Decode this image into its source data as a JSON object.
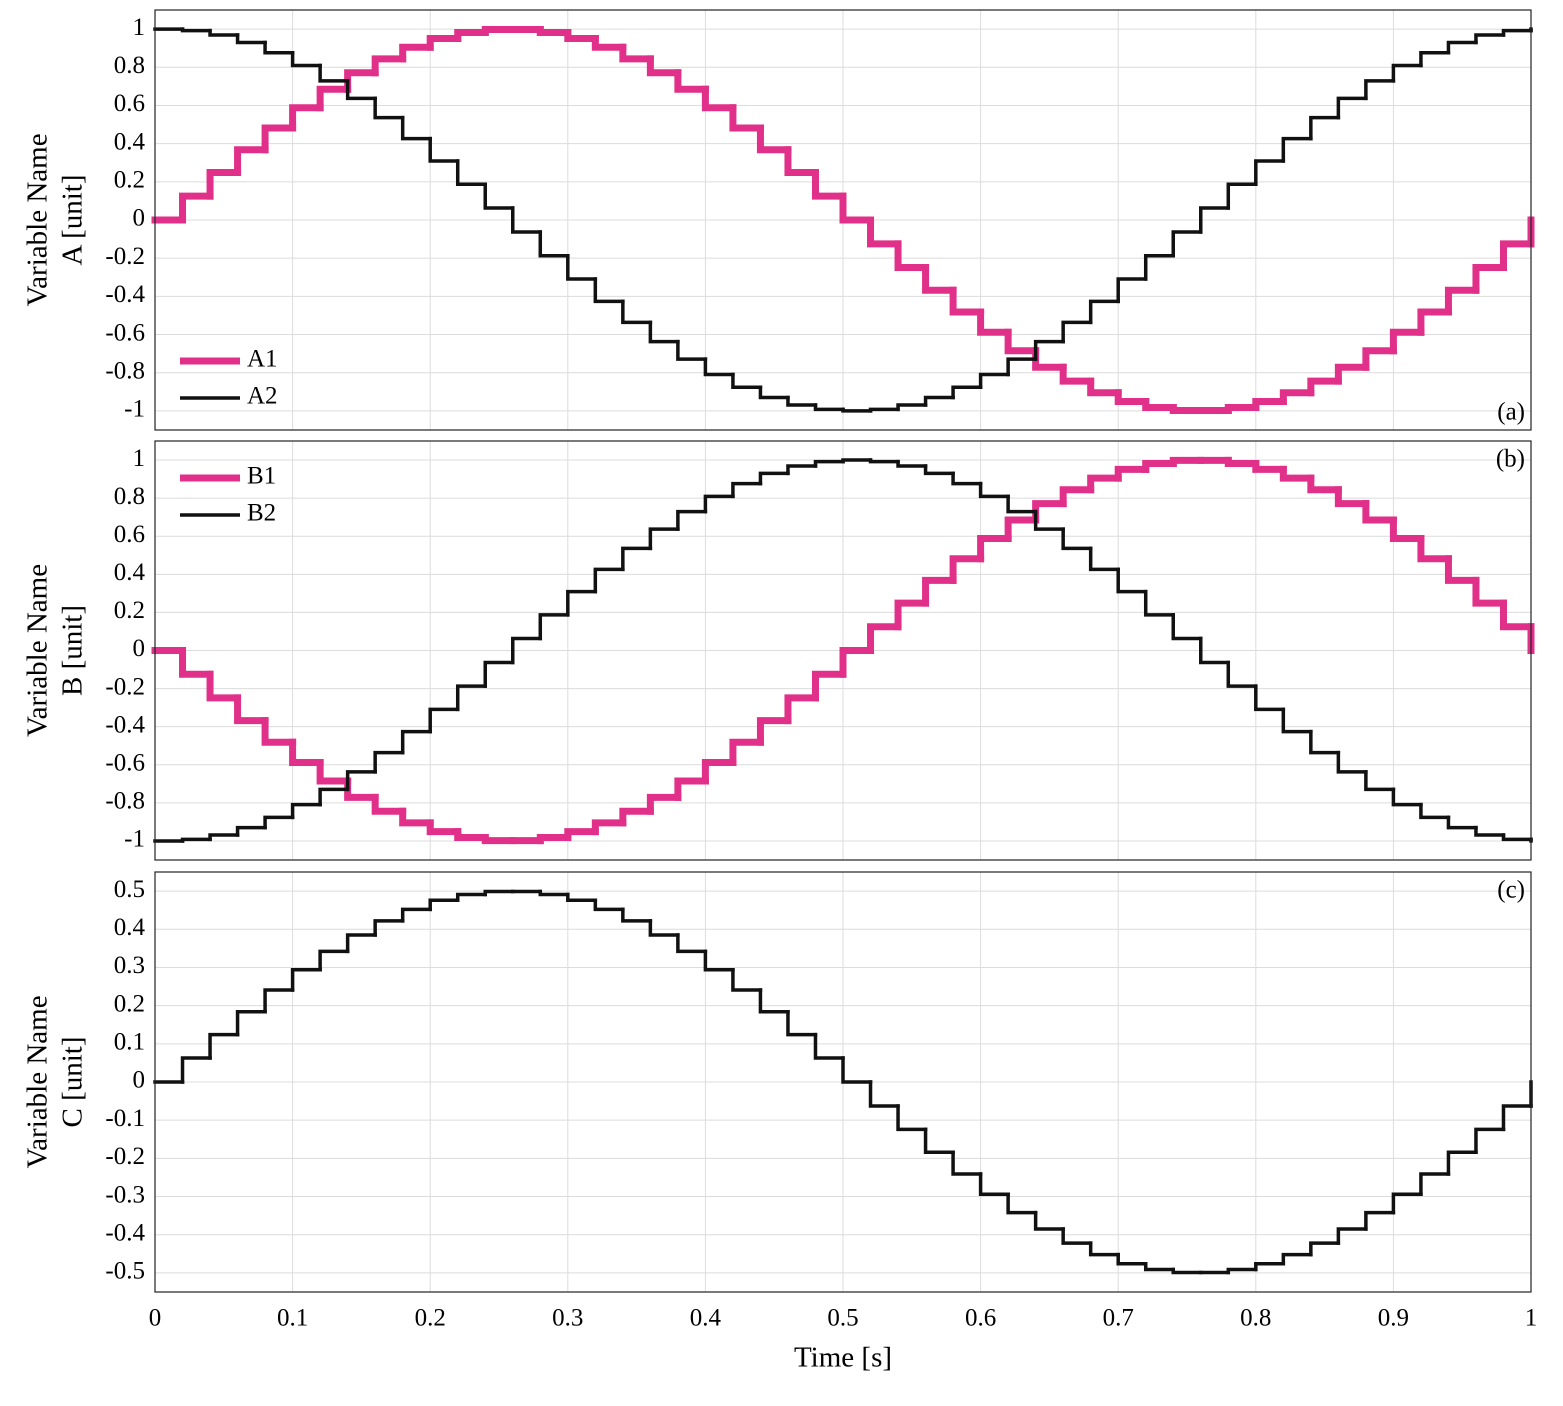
{
  "chart_data": [
    {
      "type": "stairs",
      "ylabel": [
        "Variable Name",
        "A [unit]"
      ],
      "annotation": "(a)",
      "annotation_position": "lower right",
      "legend": "lower left",
      "grid": true,
      "xlim": [
        0,
        1
      ],
      "xticks": [
        0,
        0.1,
        0.2,
        0.3,
        0.4,
        0.5,
        0.6,
        0.7,
        0.8,
        0.9,
        1
      ],
      "ylim": [
        -1.1,
        1.1
      ],
      "yticks": [
        -1,
        -0.8,
        -0.6,
        -0.4,
        -0.2,
        0,
        0.2,
        0.4,
        0.6,
        0.8,
        1
      ],
      "x": [
        0,
        0.02,
        0.04,
        0.06,
        0.08,
        0.1,
        0.12,
        0.14,
        0.16,
        0.18,
        0.2,
        0.22,
        0.24,
        0.26,
        0.28,
        0.3,
        0.32,
        0.34,
        0.36,
        0.38,
        0.4,
        0.42,
        0.44,
        0.46,
        0.48,
        0.5,
        0.52,
        0.54,
        0.56,
        0.58,
        0.6,
        0.62,
        0.64,
        0.66,
        0.68,
        0.7,
        0.72,
        0.74,
        0.76,
        0.78,
        0.8,
        0.82,
        0.84,
        0.86,
        0.88,
        0.9,
        0.92,
        0.94,
        0.96,
        0.98,
        1
      ],
      "series": [
        {
          "name": "A1",
          "color": "#e0308a",
          "values": [
            0,
            0.125,
            0.249,
            0.368,
            0.482,
            0.588,
            0.685,
            0.771,
            0.844,
            0.905,
            0.951,
            0.982,
            0.998,
            0.998,
            0.982,
            0.951,
            0.905,
            0.844,
            0.771,
            0.685,
            0.588,
            0.482,
            0.368,
            0.249,
            0.125,
            0,
            -0.125,
            -0.249,
            -0.368,
            -0.482,
            -0.588,
            -0.685,
            -0.771,
            -0.844,
            -0.905,
            -0.951,
            -0.982,
            -0.998,
            -0.998,
            -0.982,
            -0.951,
            -0.905,
            -0.844,
            -0.771,
            -0.685,
            -0.588,
            -0.482,
            -0.368,
            -0.249,
            -0.125,
            0
          ]
        },
        {
          "name": "A2",
          "color": "#111111",
          "values": [
            1,
            0.992,
            0.969,
            0.93,
            0.876,
            0.809,
            0.729,
            0.637,
            0.536,
            0.426,
            0.309,
            0.187,
            0.063,
            -0.063,
            -0.187,
            -0.309,
            -0.426,
            -0.536,
            -0.637,
            -0.729,
            -0.809,
            -0.876,
            -0.93,
            -0.969,
            -0.992,
            -1,
            -0.992,
            -0.969,
            -0.93,
            -0.876,
            -0.809,
            -0.729,
            -0.637,
            -0.536,
            -0.426,
            -0.309,
            -0.187,
            -0.063,
            0.063,
            0.187,
            0.309,
            0.426,
            0.536,
            0.637,
            0.729,
            0.809,
            0.876,
            0.93,
            0.969,
            0.992,
            1
          ]
        }
      ]
    },
    {
      "type": "stairs",
      "ylabel": [
        "Variable Name",
        "B [unit]"
      ],
      "annotation": "(b)",
      "annotation_position": "upper right",
      "legend": "upper left",
      "grid": true,
      "xlim": [
        0,
        1
      ],
      "xticks": [
        0,
        0.1,
        0.2,
        0.3,
        0.4,
        0.5,
        0.6,
        0.7,
        0.8,
        0.9,
        1
      ],
      "ylim": [
        -1.1,
        1.1
      ],
      "yticks": [
        -1,
        -0.8,
        -0.6,
        -0.4,
        -0.2,
        0,
        0.2,
        0.4,
        0.6,
        0.8,
        1
      ],
      "x": [
        0,
        0.02,
        0.04,
        0.06,
        0.08,
        0.1,
        0.12,
        0.14,
        0.16,
        0.18,
        0.2,
        0.22,
        0.24,
        0.26,
        0.28,
        0.3,
        0.32,
        0.34,
        0.36,
        0.38,
        0.4,
        0.42,
        0.44,
        0.46,
        0.48,
        0.5,
        0.52,
        0.54,
        0.56,
        0.58,
        0.6,
        0.62,
        0.64,
        0.66,
        0.68,
        0.7,
        0.72,
        0.74,
        0.76,
        0.78,
        0.8,
        0.82,
        0.84,
        0.86,
        0.88,
        0.9,
        0.92,
        0.94,
        0.96,
        0.98,
        1
      ],
      "series": [
        {
          "name": "B1",
          "color": "#e0308a",
          "values": [
            0,
            -0.125,
            -0.249,
            -0.368,
            -0.482,
            -0.588,
            -0.685,
            -0.771,
            -0.844,
            -0.905,
            -0.951,
            -0.982,
            -0.998,
            -0.998,
            -0.982,
            -0.951,
            -0.905,
            -0.844,
            -0.771,
            -0.685,
            -0.588,
            -0.482,
            -0.368,
            -0.249,
            -0.125,
            0,
            0.125,
            0.249,
            0.368,
            0.482,
            0.588,
            0.685,
            0.771,
            0.844,
            0.905,
            0.951,
            0.982,
            0.998,
            0.998,
            0.982,
            0.951,
            0.905,
            0.844,
            0.771,
            0.685,
            0.588,
            0.482,
            0.368,
            0.249,
            0.125,
            0
          ]
        },
        {
          "name": "B2",
          "color": "#111111",
          "values": [
            -1,
            -0.992,
            -0.969,
            -0.93,
            -0.876,
            -0.809,
            -0.729,
            -0.637,
            -0.536,
            -0.426,
            -0.309,
            -0.187,
            -0.063,
            0.063,
            0.187,
            0.309,
            0.426,
            0.536,
            0.637,
            0.729,
            0.809,
            0.876,
            0.93,
            0.969,
            0.992,
            1,
            0.992,
            0.969,
            0.93,
            0.876,
            0.809,
            0.729,
            0.637,
            0.536,
            0.426,
            0.309,
            0.187,
            0.063,
            -0.063,
            -0.187,
            -0.309,
            -0.426,
            -0.536,
            -0.637,
            -0.729,
            -0.809,
            -0.876,
            -0.93,
            -0.969,
            -0.992,
            -1
          ]
        }
      ]
    },
    {
      "type": "stairs",
      "ylabel": [
        "Variable Name",
        "C [unit]"
      ],
      "xlabel": "Time [s]",
      "annotation": "(c)",
      "annotation_position": "upper right",
      "grid": true,
      "xlim": [
        0,
        1
      ],
      "xticks": [
        0,
        0.1,
        0.2,
        0.3,
        0.4,
        0.5,
        0.6,
        0.7,
        0.8,
        0.9,
        1
      ],
      "ylim": [
        -0.55,
        0.55
      ],
      "yticks": [
        -0.5,
        -0.4,
        -0.3,
        -0.2,
        -0.1,
        0,
        0.1,
        0.2,
        0.3,
        0.4,
        0.5
      ],
      "x": [
        0,
        0.02,
        0.04,
        0.06,
        0.08,
        0.1,
        0.12,
        0.14,
        0.16,
        0.18,
        0.2,
        0.22,
        0.24,
        0.26,
        0.28,
        0.3,
        0.32,
        0.34,
        0.36,
        0.38,
        0.4,
        0.42,
        0.44,
        0.46,
        0.48,
        0.5,
        0.52,
        0.54,
        0.56,
        0.58,
        0.6,
        0.62,
        0.64,
        0.66,
        0.68,
        0.7,
        0.72,
        0.74,
        0.76,
        0.78,
        0.8,
        0.82,
        0.84,
        0.86,
        0.88,
        0.9,
        0.92,
        0.94,
        0.96,
        0.98,
        1
      ],
      "color": "#111111",
      "values": [
        0,
        0.063,
        0.124,
        0.184,
        0.241,
        0.294,
        0.342,
        0.385,
        0.422,
        0.452,
        0.476,
        0.491,
        0.499,
        0.499,
        0.491,
        0.476,
        0.452,
        0.422,
        0.385,
        0.342,
        0.294,
        0.241,
        0.184,
        0.124,
        0.063,
        0,
        -0.063,
        -0.124,
        -0.184,
        -0.241,
        -0.294,
        -0.342,
        -0.385,
        -0.422,
        -0.452,
        -0.476,
        -0.491,
        -0.499,
        -0.499,
        -0.491,
        -0.476,
        -0.452,
        -0.422,
        -0.385,
        -0.342,
        -0.294,
        -0.241,
        -0.184,
        -0.124,
        -0.063,
        0
      ]
    }
  ]
}
